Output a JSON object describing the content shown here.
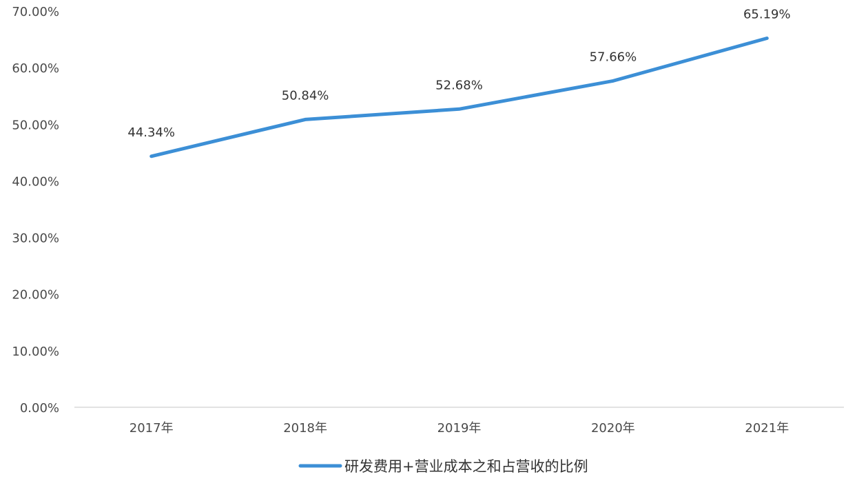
{
  "chart_data": {
    "type": "line",
    "title": "",
    "xlabel": "",
    "ylabel": "",
    "categories": [
      "2017年",
      "2018年",
      "2019年",
      "2020年",
      "2021年"
    ],
    "series": [
      {
        "name": "研发费用+营业成本之和占营收的比例",
        "values": [
          44.34,
          50.84,
          52.68,
          57.66,
          65.19
        ],
        "labels": [
          "44.34%",
          "50.84%",
          "52.68%",
          "57.66%",
          "65.19%"
        ],
        "color": "#3c8fd6"
      }
    ],
    "ylim": [
      0,
      70
    ],
    "yticks": [
      0,
      10,
      20,
      30,
      40,
      50,
      60,
      70
    ],
    "ytick_labels": [
      "0.00%",
      "10.00%",
      "20.00%",
      "30.00%",
      "40.00%",
      "50.00%",
      "60.00%",
      "70.00%"
    ],
    "grid": false,
    "legend": "bottom-center",
    "axis_color": "#d9d9d9"
  }
}
